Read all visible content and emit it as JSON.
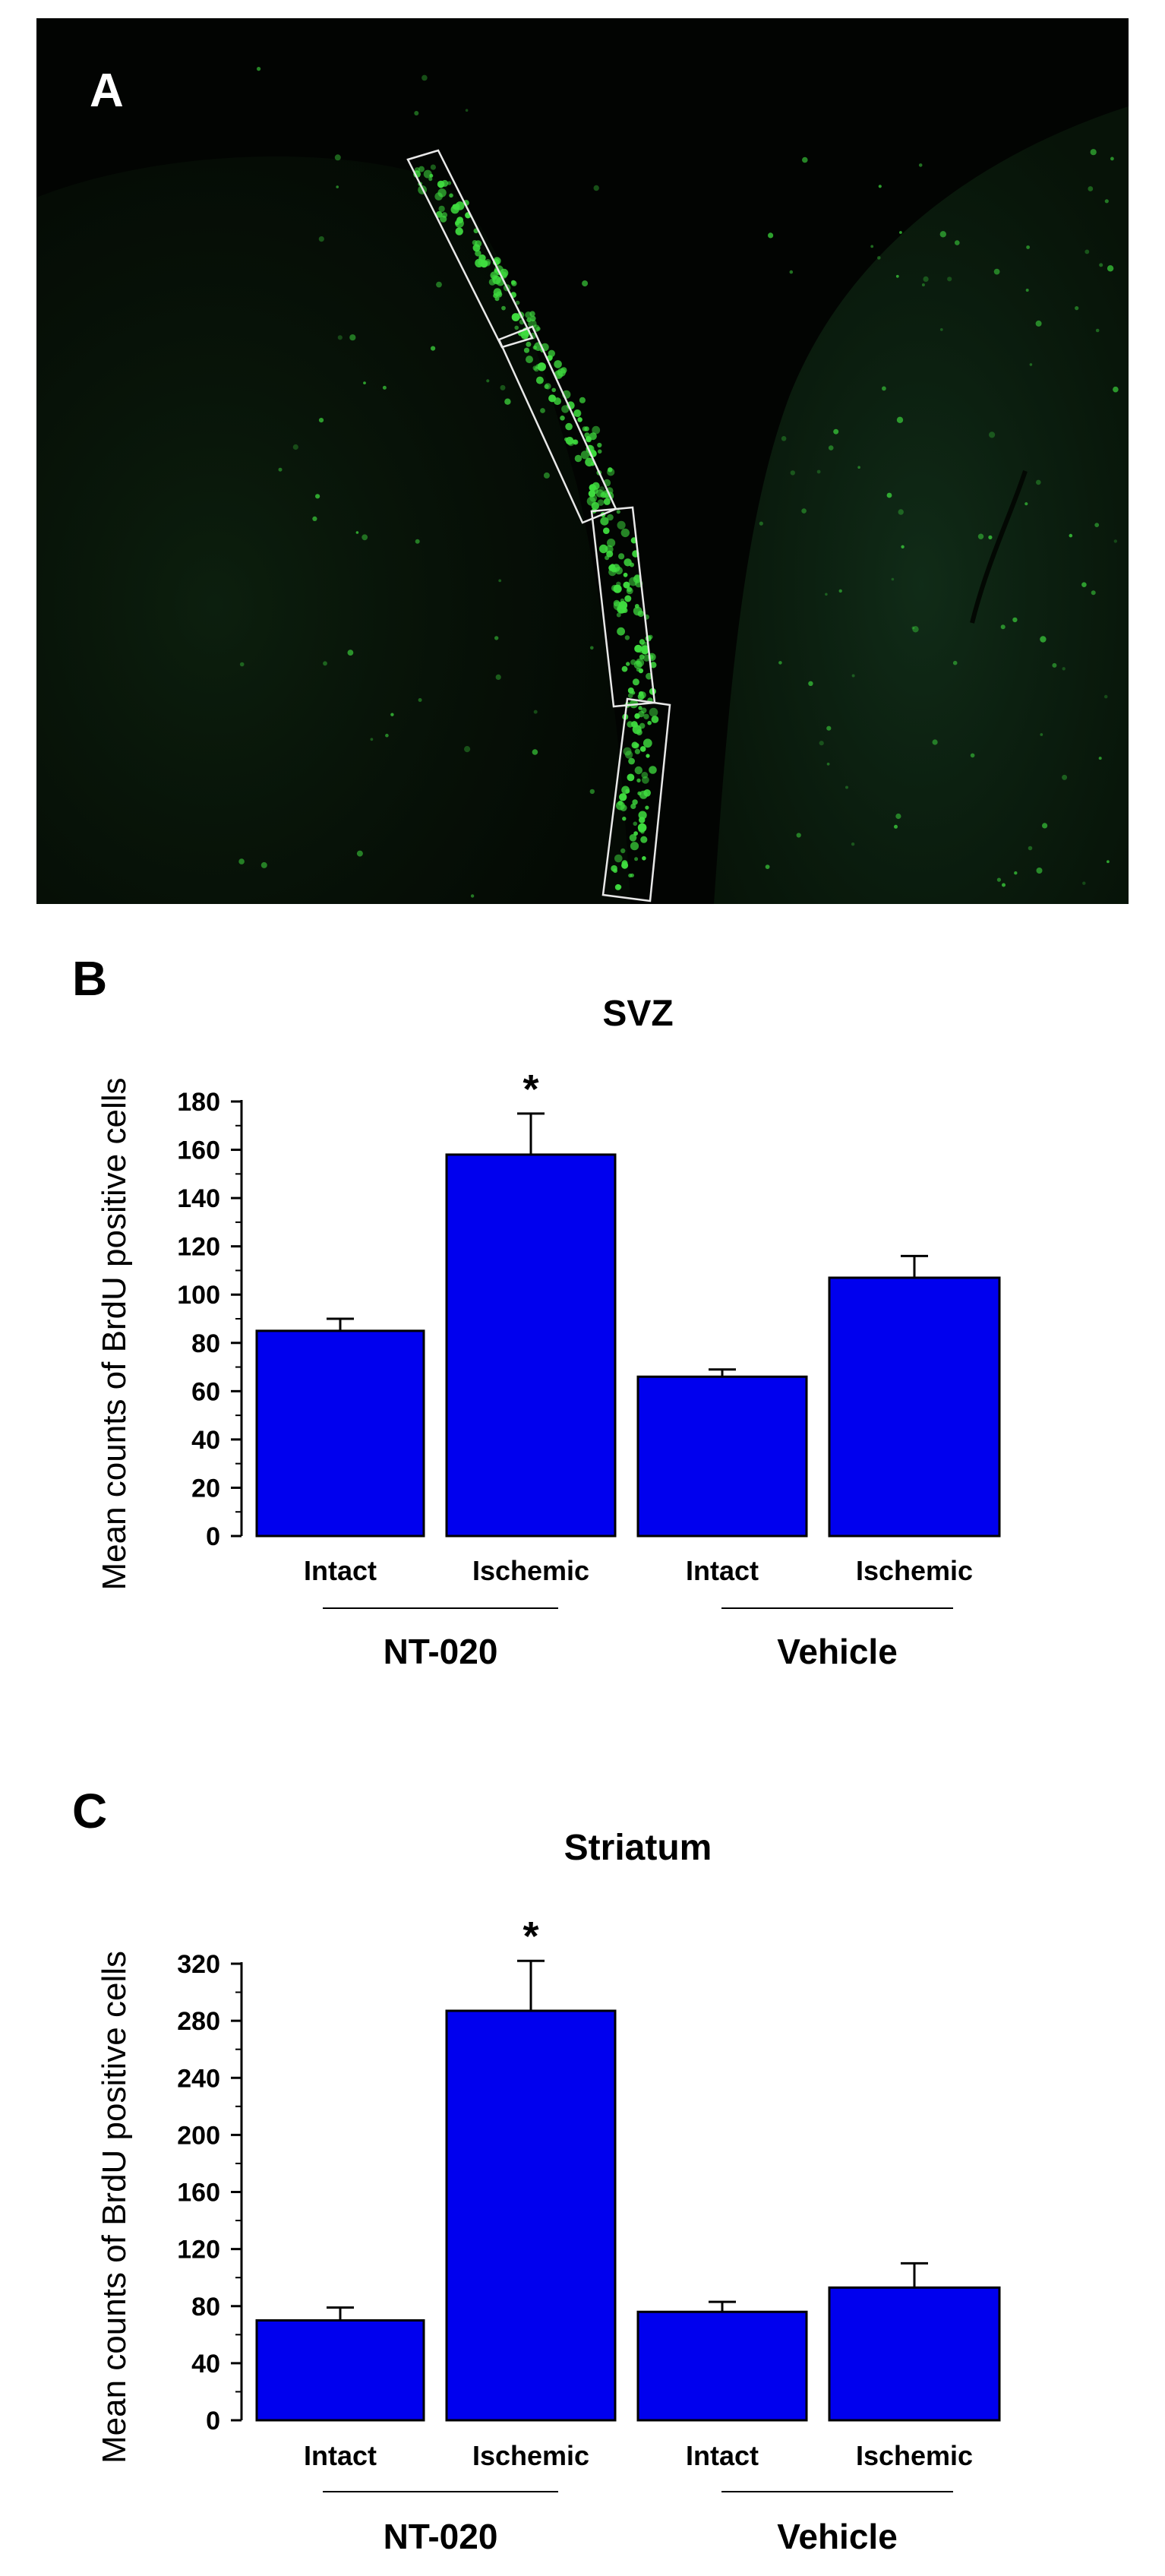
{
  "colors": {
    "bar_fill": "#0000ee",
    "bar_stroke": "#000000",
    "micrograph_bg": "#020402",
    "fluorescence": "#3fdc3f",
    "tissue": "#0c240c"
  },
  "panel_a": {
    "letter": "A"
  },
  "chart_data": [
    {
      "panel": "B",
      "type": "bar",
      "title": "SVZ",
      "ylabel": "Mean counts of BrdU positive cells",
      "xlabel": "",
      "categories": [
        "Intact",
        "Ischemic",
        "Intact",
        "Ischemic"
      ],
      "groups": [
        {
          "label": "NT-020",
          "categories": [
            0,
            1
          ]
        },
        {
          "label": "Vehicle",
          "categories": [
            2,
            3
          ]
        }
      ],
      "values": [
        85,
        158,
        66,
        107
      ],
      "errors": [
        5,
        17,
        3,
        9
      ],
      "significance": [
        "",
        "*",
        "",
        ""
      ],
      "ylim": [
        0,
        180
      ],
      "yticks": [
        0,
        20,
        40,
        60,
        80,
        100,
        120,
        140,
        160,
        180
      ],
      "grid": false,
      "legend": "none"
    },
    {
      "panel": "C",
      "type": "bar",
      "title": "Striatum",
      "ylabel": "Mean counts of BrdU positive cells",
      "xlabel": "",
      "categories": [
        "Intact",
        "Ischemic",
        "Intact",
        "Ischemic"
      ],
      "groups": [
        {
          "label": "NT-020",
          "categories": [
            0,
            1
          ]
        },
        {
          "label": "Vehicle",
          "categories": [
            2,
            3
          ]
        }
      ],
      "values": [
        70,
        287,
        76,
        93
      ],
      "errors": [
        9,
        35,
        7,
        17
      ],
      "significance": [
        "",
        "*",
        "",
        ""
      ],
      "ylim": [
        0,
        320
      ],
      "yticks": [
        0,
        40,
        80,
        120,
        160,
        200,
        240,
        280,
        320
      ],
      "grid": false,
      "legend": "none"
    }
  ]
}
